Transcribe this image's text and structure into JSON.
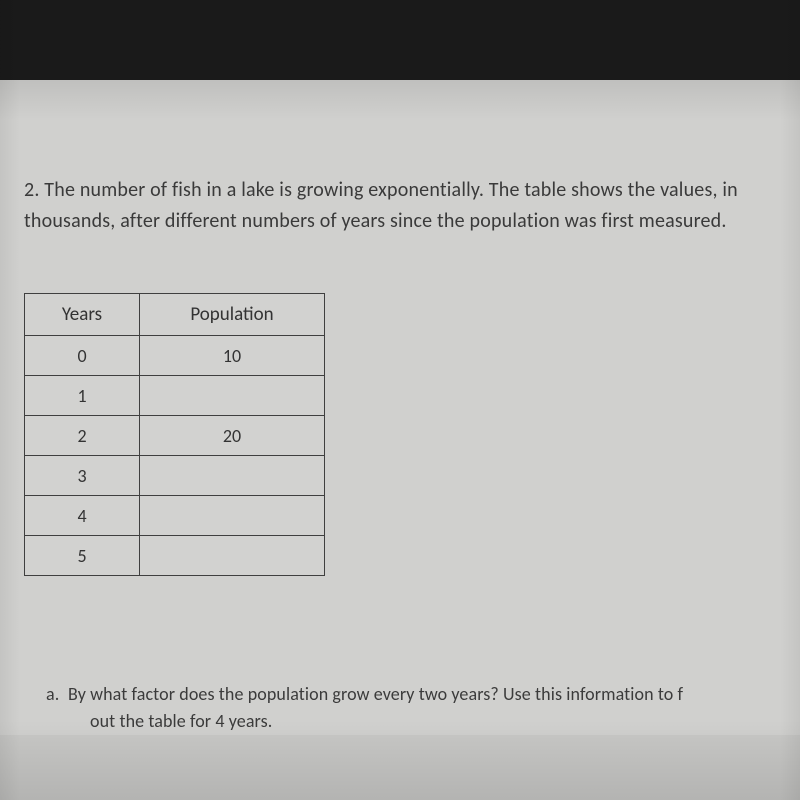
{
  "question": {
    "number": "2.",
    "line1": "2. The number of fish in a lake is growing exponentially. The table shows the values, in",
    "line2": "thousands, after different numbers of years since the population was first measured."
  },
  "table": {
    "headers": {
      "col1": "Years",
      "col2": "Population"
    },
    "rows": [
      {
        "years": "0",
        "population": "10"
      },
      {
        "years": "1",
        "population": ""
      },
      {
        "years": "2",
        "population": "20"
      },
      {
        "years": "3",
        "population": ""
      },
      {
        "years": "4",
        "population": ""
      },
      {
        "years": "5",
        "population": ""
      }
    ]
  },
  "sub": {
    "marker": "a.",
    "line1": "By what factor does the population grow every two years? Use this information to f",
    "line2": "out the table for 4 years."
  },
  "colors": {
    "page_bg": "#d0d0ce",
    "topbar_bg": "#1a1a1a",
    "text": "#3a3a3a",
    "border": "#3f3f3f"
  }
}
